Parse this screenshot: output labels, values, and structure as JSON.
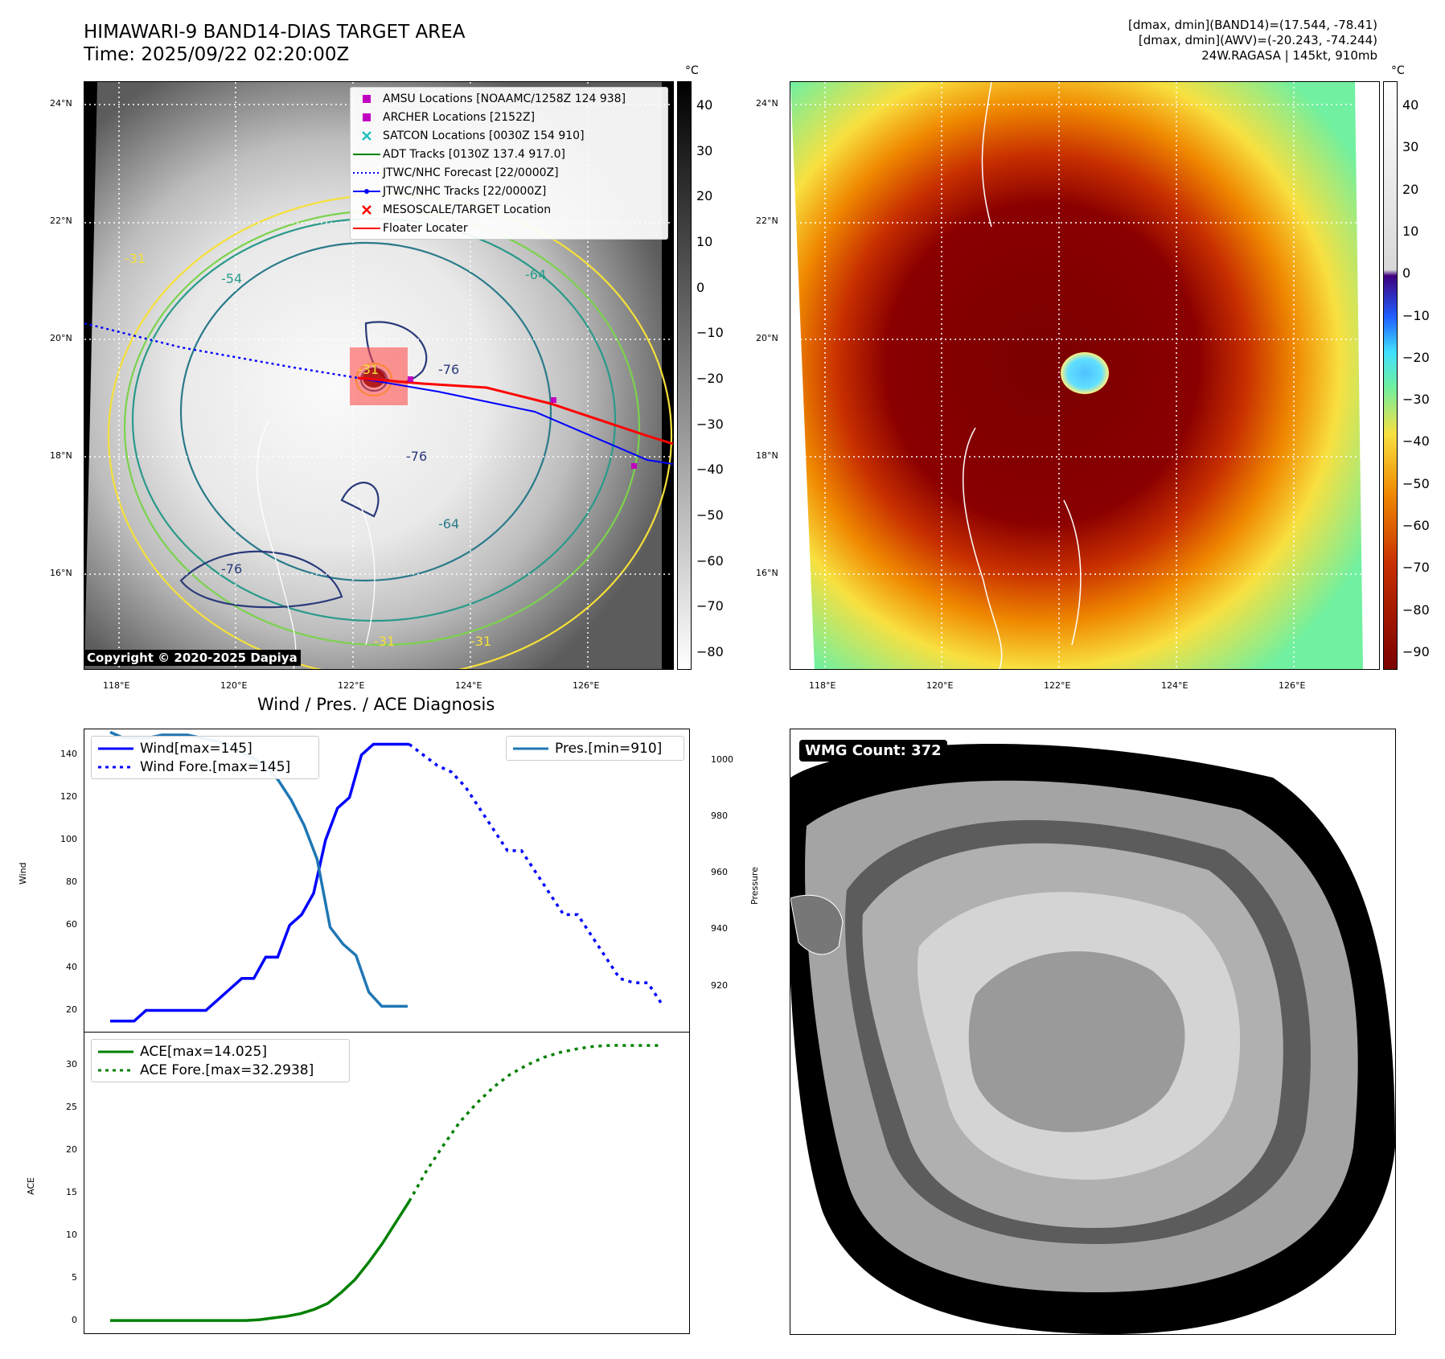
{
  "header": {
    "title_line1": "HIMAWARI-9 BAND14-DIAS TARGET AREA",
    "title_line2": "Time: 2025/09/22 02:20:00Z",
    "right_line1": "[dmax, dmin](BAND14)=(17.544, -78.41)",
    "right_line2": "[dmax, dmin](AWV)=(-20.243, -74.244)",
    "right_line3": "24W.RAGASA | 145kt, 910mb"
  },
  "map": {
    "lat_labels": [
      "24°N",
      "22°N",
      "20°N",
      "18°N",
      "16°N"
    ],
    "lon_labels": [
      "118°E",
      "120°E",
      "122°E",
      "124°E",
      "126°E"
    ],
    "copyright": "Copyright © 2020-2025 Dapiya",
    "contour_labels": [
      "-31",
      "-76",
      "-64",
      "-54",
      "-76",
      "-76",
      "-64",
      "-31",
      "-31",
      "-31"
    ],
    "legend": [
      {
        "label": "AMSU Locations [NOAAMC/1258Z 124 938]",
        "color": "#c000c0",
        "marker": "square"
      },
      {
        "label": "ARCHER Locations [2152Z]",
        "color": "#c000c0",
        "marker": "square"
      },
      {
        "label": "SATCON Locations [0030Z 154 910]",
        "color": "#20c0c0",
        "marker": "x"
      },
      {
        "label": "ADT Tracks [0130Z 137.4 917.0]",
        "color": "#008000",
        "marker": "line"
      },
      {
        "label": "JTWC/NHC Forecast [22/0000Z]",
        "color": "#0000ff",
        "marker": "dotted"
      },
      {
        "label": "JTWC/NHC Tracks [22/0000Z]",
        "color": "#0000ff",
        "marker": "dotline"
      },
      {
        "label": "MESOSCALE/TARGET Location",
        "color": "#ff0000",
        "marker": "x"
      },
      {
        "label": "Floater Locater",
        "color": "#ff0000",
        "marker": "line"
      }
    ]
  },
  "colorbar_gray": {
    "unit": "°C",
    "ticks": [
      "40",
      "30",
      "20",
      "10",
      "0",
      "−10",
      "−20",
      "−30",
      "−40",
      "−50",
      "−60",
      "−70",
      "−80"
    ]
  },
  "colorbar_color": {
    "unit": "°C",
    "ticks": [
      "40",
      "30",
      "20",
      "10",
      "0",
      "−10",
      "−20",
      "−30",
      "−40",
      "−50",
      "−60",
      "−70",
      "−80",
      "−90"
    ]
  },
  "timeseries_title": "Wind / Pres. / ACE Diagnosis",
  "wmg": {
    "badge": "WMG Count: 372"
  },
  "chart_data": [
    {
      "type": "line",
      "title": "Wind / Pres. / ACE Diagnosis",
      "ylabel": "Wind",
      "y2label": "Pressure",
      "ylim": [
        10,
        152
      ],
      "y2lim": [
        904,
        1011
      ],
      "yticks": [
        "20",
        "40",
        "60",
        "80",
        "100",
        "120",
        "140"
      ],
      "y2ticks": [
        "920",
        "940",
        "960",
        "980",
        "1000"
      ],
      "series": [
        {
          "name": "Wind[max=145]",
          "color": "#0000ff",
          "style": "solid",
          "values": [
            15,
            15,
            15,
            20,
            20,
            20,
            20,
            20,
            20,
            25,
            30,
            35,
            35,
            45,
            45,
            60,
            65,
            75,
            100,
            115,
            120,
            140,
            145,
            145,
            145,
            145
          ]
        },
        {
          "name": "Wind Fore.[max=145]",
          "color": "#0000ff",
          "style": "dotted",
          "values": [
            145,
            140,
            135,
            132,
            125,
            115,
            105,
            95,
            95,
            85,
            75,
            65,
            65,
            55,
            45,
            35,
            33,
            33,
            23
          ]
        },
        {
          "name": "Pres.[min=910]",
          "color": "#1f77b4",
          "style": "solid",
          "axis": "right",
          "values": [
            1010,
            1008,
            1008,
            1008,
            1009,
            1009,
            1009,
            1008,
            1007,
            1006,
            1003,
            1001,
            998,
            993,
            986,
            977,
            965,
            941,
            935,
            931,
            918,
            913,
            913,
            913
          ]
        }
      ]
    },
    {
      "type": "line",
      "ylabel": "ACE",
      "ylim": [
        -1.5,
        34
      ],
      "yticks": [
        "0",
        "5",
        "10",
        "15",
        "20",
        "25",
        "30"
      ],
      "series": [
        {
          "name": "ACE[max=14.025]",
          "color": "#008000",
          "style": "solid",
          "values": [
            0,
            0,
            0,
            0,
            0,
            0,
            0,
            0,
            0,
            0,
            0,
            0.1,
            0.3,
            0.5,
            0.8,
            1.3,
            2,
            3.3,
            4.8,
            6.8,
            9,
            11.5,
            14.0
          ]
        },
        {
          "name": "ACE Fore.[max=32.2938]",
          "color": "#008000",
          "style": "dotted",
          "values": [
            14.0,
            17.5,
            20.5,
            23.3,
            25.5,
            27.4,
            28.9,
            30.0,
            30.9,
            31.5,
            31.9,
            32.2,
            32.3,
            32.29,
            32.29,
            32.29
          ]
        }
      ]
    }
  ]
}
